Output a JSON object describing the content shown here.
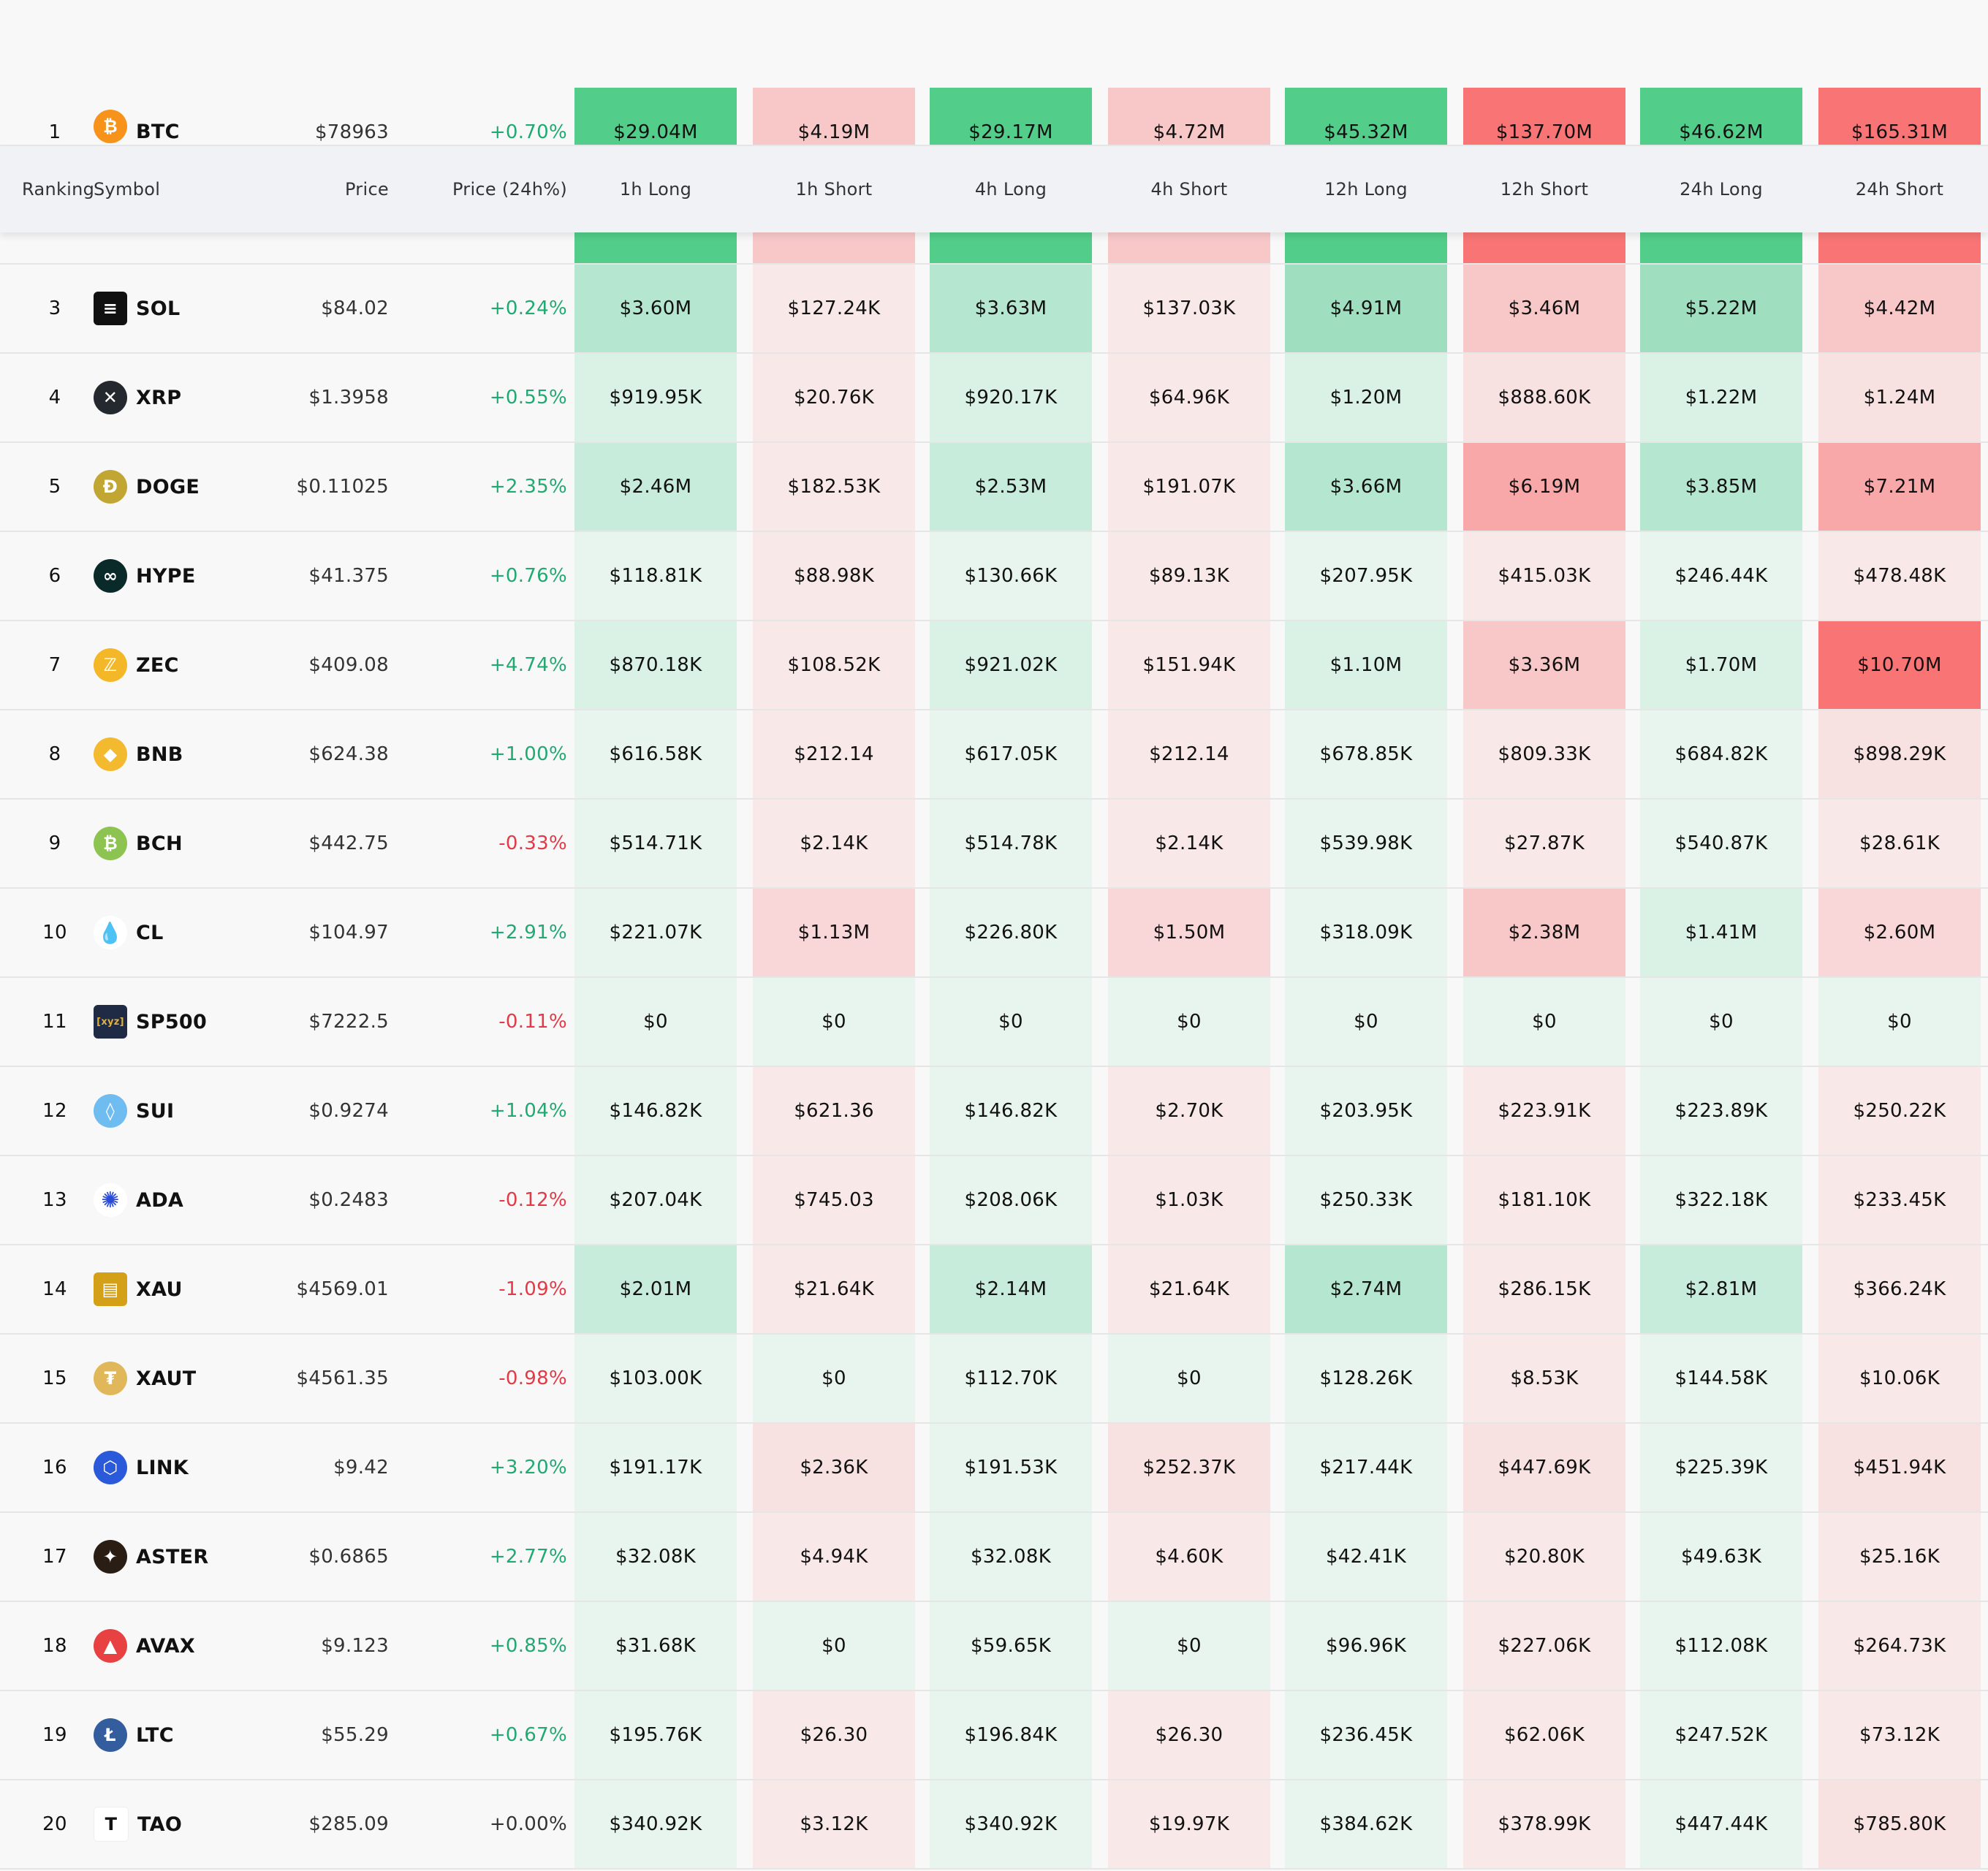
{
  "columns": {
    "ranking": "Ranking",
    "symbol": "Symbol",
    "price": "Price",
    "price_change": "Price (24h%)",
    "values": [
      "1h Long",
      "1h Short",
      "4h Long",
      "4h Short",
      "12h Long",
      "12h Short",
      "24h Long",
      "24h Short"
    ]
  },
  "palette": {
    "positive_text": "#20a971",
    "negative_text": "#e23a46",
    "long_levels": [
      "#e8f5ee",
      "#daf2e6",
      "#c8ecdb",
      "#b5e6cf",
      "#9fdfbf",
      "#52cd8a"
    ],
    "short_levels": [
      "#f9e8e8",
      "#f8e1e1",
      "#f9d7d8",
      "#f8c8c9",
      "#f8a8a9",
      "#f97575"
    ],
    "zero_cell": "#e8f5ee"
  },
  "rows": [
    {
      "rank": "1",
      "symbol": "BTC",
      "icon": "bitcoin-icon",
      "icon_bg": "#f7931a",
      "icon_glyph": "₿",
      "price": "$78963",
      "change": "+0.70%",
      "dir": "pos",
      "values": [
        "$29.04M",
        "$4.19M",
        "$29.17M",
        "$4.72M",
        "$45.32M",
        "$137.70M",
        "$46.62M",
        "$165.31M"
      ],
      "levels": [
        5,
        3,
        5,
        3,
        5,
        5,
        5,
        5
      ]
    },
    {
      "rank": "3",
      "symbol": "SOL",
      "icon": "solana-icon",
      "icon_bg": "#111111",
      "icon_glyph": "≡",
      "price": "$84.02",
      "change": "+0.24%",
      "dir": "pos",
      "values": [
        "$3.60M",
        "$127.24K",
        "$3.63M",
        "$137.03K",
        "$4.91M",
        "$3.46M",
        "$5.22M",
        "$4.42M"
      ],
      "levels": [
        3,
        0,
        3,
        0,
        4,
        3,
        4,
        3
      ]
    },
    {
      "rank": "4",
      "symbol": "XRP",
      "icon": "xrp-icon",
      "icon_bg": "#23292f",
      "icon_glyph": "✕",
      "price": "$1.3958",
      "change": "+0.55%",
      "dir": "pos",
      "values": [
        "$919.95K",
        "$20.76K",
        "$920.17K",
        "$64.96K",
        "$1.20M",
        "$888.60K",
        "$1.22M",
        "$1.24M"
      ],
      "levels": [
        1,
        0,
        1,
        0,
        1,
        1,
        1,
        1
      ]
    },
    {
      "rank": "5",
      "symbol": "DOGE",
      "icon": "doge-icon",
      "icon_bg": "#c2a633",
      "icon_glyph": "Ð",
      "price": "$0.11025",
      "change": "+2.35%",
      "dir": "pos",
      "values": [
        "$2.46M",
        "$182.53K",
        "$2.53M",
        "$191.07K",
        "$3.66M",
        "$6.19M",
        "$3.85M",
        "$7.21M"
      ],
      "levels": [
        2,
        0,
        2,
        0,
        3,
        4,
        3,
        4
      ]
    },
    {
      "rank": "6",
      "symbol": "HYPE",
      "icon": "hyperliquid-icon",
      "icon_bg": "#0a2a2a",
      "icon_glyph": "∞",
      "price": "$41.375",
      "change": "+0.76%",
      "dir": "pos",
      "values": [
        "$118.81K",
        "$88.98K",
        "$130.66K",
        "$89.13K",
        "$207.95K",
        "$415.03K",
        "$246.44K",
        "$478.48K"
      ],
      "levels": [
        0,
        0,
        0,
        0,
        0,
        0,
        0,
        0
      ]
    },
    {
      "rank": "7",
      "symbol": "ZEC",
      "icon": "zcash-icon",
      "icon_bg": "#f4b728",
      "icon_glyph": "ℤ",
      "price": "$409.08",
      "change": "+4.74%",
      "dir": "pos",
      "values": [
        "$870.18K",
        "$108.52K",
        "$921.02K",
        "$151.94K",
        "$1.10M",
        "$3.36M",
        "$1.70M",
        "$10.70M"
      ],
      "levels": [
        1,
        0,
        1,
        0,
        1,
        3,
        1,
        5
      ]
    },
    {
      "rank": "8",
      "symbol": "BNB",
      "icon": "bnb-icon",
      "icon_bg": "#f3ba2f",
      "icon_glyph": "◆",
      "price": "$624.38",
      "change": "+1.00%",
      "dir": "pos",
      "values": [
        "$616.58K",
        "$212.14",
        "$617.05K",
        "$212.14",
        "$678.85K",
        "$809.33K",
        "$684.82K",
        "$898.29K"
      ],
      "levels": [
        0,
        0,
        0,
        0,
        0,
        0,
        0,
        1
      ]
    },
    {
      "rank": "9",
      "symbol": "BCH",
      "icon": "bitcoin-cash-icon",
      "icon_bg": "#8dc351",
      "icon_glyph": "₿",
      "price": "$442.75",
      "change": "-0.33%",
      "dir": "neg",
      "values": [
        "$514.71K",
        "$2.14K",
        "$514.78K",
        "$2.14K",
        "$539.98K",
        "$27.87K",
        "$540.87K",
        "$28.61K"
      ],
      "levels": [
        0,
        0,
        0,
        0,
        0,
        0,
        0,
        0
      ]
    },
    {
      "rank": "10",
      "symbol": "CL",
      "icon": "oil-drop-icon",
      "icon_bg": "#ffffff",
      "icon_glyph": "💧",
      "price": "$104.97",
      "change": "+2.91%",
      "dir": "pos",
      "values": [
        "$221.07K",
        "$1.13M",
        "$226.80K",
        "$1.50M",
        "$318.09K",
        "$2.38M",
        "$1.41M",
        "$2.60M"
      ],
      "levels": [
        0,
        2,
        0,
        2,
        0,
        3,
        1,
        2
      ]
    },
    {
      "rank": "11",
      "symbol": "SP500",
      "icon": "sp500-icon",
      "icon_bg": "#1f2a44",
      "icon_glyph": "[xyz]",
      "price": "$7222.5",
      "change": "-0.11%",
      "dir": "neg",
      "values": [
        "$0",
        "$0",
        "$0",
        "$0",
        "$0",
        "$0",
        "$0",
        "$0"
      ],
      "levels": [
        -1,
        -1,
        -1,
        -1,
        -1,
        -1,
        -1,
        -1
      ]
    },
    {
      "rank": "12",
      "symbol": "SUI",
      "icon": "sui-icon",
      "icon_bg": "#6fbcf0",
      "icon_glyph": "◊",
      "price": "$0.9274",
      "change": "+1.04%",
      "dir": "pos",
      "values": [
        "$146.82K",
        "$621.36",
        "$146.82K",
        "$2.70K",
        "$203.95K",
        "$223.91K",
        "$223.89K",
        "$250.22K"
      ],
      "levels": [
        0,
        0,
        0,
        0,
        0,
        0,
        0,
        0
      ]
    },
    {
      "rank": "13",
      "symbol": "ADA",
      "icon": "cardano-icon",
      "icon_bg": "#ffffff",
      "icon_glyph": "✺",
      "price": "$0.2483",
      "change": "-0.12%",
      "dir": "neg",
      "values": [
        "$207.04K",
        "$745.03",
        "$208.06K",
        "$1.03K",
        "$250.33K",
        "$181.10K",
        "$322.18K",
        "$233.45K"
      ],
      "levels": [
        0,
        0,
        0,
        0,
        0,
        0,
        0,
        0
      ]
    },
    {
      "rank": "14",
      "symbol": "XAU",
      "icon": "gold-bars-icon",
      "icon_bg": "#d4a017",
      "icon_glyph": "▤",
      "price": "$4569.01",
      "change": "-1.09%",
      "dir": "neg",
      "values": [
        "$2.01M",
        "$21.64K",
        "$2.14M",
        "$21.64K",
        "$2.74M",
        "$286.15K",
        "$2.81M",
        "$366.24K"
      ],
      "levels": [
        2,
        0,
        2,
        0,
        3,
        0,
        2,
        0
      ]
    },
    {
      "rank": "15",
      "symbol": "XAUT",
      "icon": "tether-gold-icon",
      "icon_bg": "#e0b85a",
      "icon_glyph": "₮",
      "price": "$4561.35",
      "change": "-0.98%",
      "dir": "neg",
      "values": [
        "$103.00K",
        "$0",
        "$112.70K",
        "$0",
        "$128.26K",
        "$8.53K",
        "$144.58K",
        "$10.06K"
      ],
      "levels": [
        0,
        -1,
        0,
        -1,
        0,
        0,
        0,
        0
      ]
    },
    {
      "rank": "16",
      "symbol": "LINK",
      "icon": "chainlink-icon",
      "icon_bg": "#2a5ada",
      "icon_glyph": "⬡",
      "price": "$9.42",
      "change": "+3.20%",
      "dir": "pos",
      "values": [
        "$191.17K",
        "$2.36K",
        "$191.53K",
        "$252.37K",
        "$217.44K",
        "$447.69K",
        "$225.39K",
        "$451.94K"
      ],
      "levels": [
        0,
        1,
        0,
        1,
        0,
        1,
        0,
        1
      ]
    },
    {
      "rank": "17",
      "symbol": "ASTER",
      "icon": "aster-icon",
      "icon_bg": "#2a1e14",
      "icon_glyph": "✦",
      "price": "$0.6865",
      "change": "+2.77%",
      "dir": "pos",
      "values": [
        "$32.08K",
        "$4.94K",
        "$32.08K",
        "$4.60K",
        "$42.41K",
        "$20.80K",
        "$49.63K",
        "$25.16K"
      ],
      "levels": [
        0,
        0,
        0,
        0,
        0,
        0,
        0,
        0
      ]
    },
    {
      "rank": "18",
      "symbol": "AVAX",
      "icon": "avalanche-icon",
      "icon_bg": "#e84142",
      "icon_glyph": "▲",
      "price": "$9.123",
      "change": "+0.85%",
      "dir": "pos",
      "values": [
        "$31.68K",
        "$0",
        "$59.65K",
        "$0",
        "$96.96K",
        "$227.06K",
        "$112.08K",
        "$264.73K"
      ],
      "levels": [
        0,
        -1,
        0,
        -1,
        0,
        0,
        0,
        0
      ]
    },
    {
      "rank": "19",
      "symbol": "LTC",
      "icon": "litecoin-icon",
      "icon_bg": "#345d9d",
      "icon_glyph": "Ł",
      "price": "$55.29",
      "change": "+0.67%",
      "dir": "pos",
      "values": [
        "$195.76K",
        "$26.30",
        "$196.84K",
        "$26.30",
        "$236.45K",
        "$62.06K",
        "$247.52K",
        "$73.12K"
      ],
      "levels": [
        0,
        0,
        0,
        0,
        0,
        0,
        0,
        0
      ]
    },
    {
      "rank": "20",
      "symbol": "TAO",
      "icon": "bittensor-icon",
      "icon_bg": "#ffffff",
      "icon_glyph": "T",
      "price": "$285.09",
      "change": "+0.00%",
      "dir": "neu",
      "values": [
        "$340.92K",
        "$3.12K",
        "$340.92K",
        "$19.97K",
        "$384.62K",
        "$378.99K",
        "$447.44K",
        "$785.80K"
      ],
      "levels": [
        0,
        0,
        0,
        0,
        0,
        0,
        0,
        1
      ]
    }
  ]
}
